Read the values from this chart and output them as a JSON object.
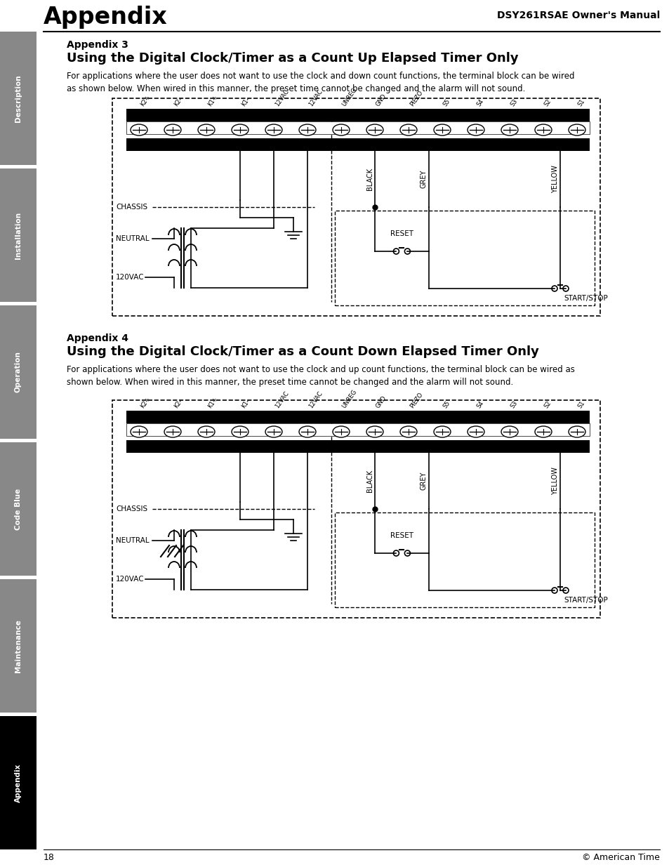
{
  "page_title": "Appendix",
  "page_title_right": "DSY261RSAE Owner's Manual",
  "page_number": "18",
  "page_copyright": "© American Time",
  "bg_color": "#ffffff",
  "sidebar_labels": [
    "Description",
    "Installation",
    "Operation",
    "Code Blue",
    "Maintenance",
    "Appendix"
  ],
  "sidebar_colors": [
    "#888888",
    "#888888",
    "#888888",
    "#888888",
    "#888888",
    "#000000"
  ],
  "appendix3_heading": "Appendix 3",
  "appendix3_title": "Using the Digital Clock/Timer as a Count Up Elapsed Timer Only",
  "appendix3_body": "For applications where the user does not want to use the clock and down count functions, the terminal block can be wired\nas shown below. When wired in this manner, the preset time cannot be changed and the alarm will not sound.",
  "appendix4_heading": "Appendix 4",
  "appendix4_title": "Using the Digital Clock/Timer as a Count Down Elapsed Timer Only",
  "appendix4_body": "For applications where the user does not want to use the clock and up count functions, the terminal block can be wired as\nshown below. When wired in this manner, the preset time cannot be changed and the alarm will not sound.",
  "terminal_labels": [
    "K2+",
    "K2–",
    "K1+",
    "K1–",
    "12VAC",
    "12VAC",
    "UNREG",
    "GND",
    "PIEZO",
    "S5",
    "S4",
    "S3",
    "S2",
    "S1"
  ]
}
